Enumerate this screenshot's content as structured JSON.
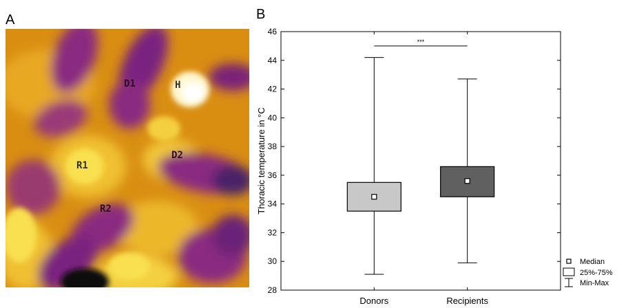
{
  "panels": {
    "a_label": "A",
    "b_label": "B"
  },
  "thermal_image": {
    "labels": [
      {
        "key": "D1",
        "text": "D1"
      },
      {
        "key": "H",
        "text": "H"
      },
      {
        "key": "D2",
        "text": "D2"
      },
      {
        "key": "R1",
        "text": "R1"
      },
      {
        "key": "R2",
        "text": "R2"
      }
    ],
    "colors": {
      "hot": "#ffffff",
      "warm": "#f4d040",
      "mid": "#d89010",
      "cool": "#8a2a80",
      "cold": "#402060"
    }
  },
  "chart_data": {
    "type": "boxplot",
    "title": "",
    "xlabel": "",
    "ylabel": "Thoracic temperature in °C",
    "ylim": [
      28,
      46
    ],
    "yticks": [
      28,
      30,
      32,
      34,
      36,
      38,
      40,
      42,
      44,
      46
    ],
    "categories": [
      "Donors",
      "Recipients"
    ],
    "boxes": [
      {
        "category": "Donors",
        "min": 29.1,
        "q1": 33.5,
        "median": 34.5,
        "q3": 35.5,
        "max": 44.2,
        "color": "#c8c8c8"
      },
      {
        "category": "Recipients",
        "min": 29.9,
        "q1": 34.5,
        "median": 35.6,
        "q3": 36.6,
        "max": 42.7,
        "color": "#606060"
      }
    ],
    "significance": "***",
    "legend": {
      "placement": "bottom-right-outside",
      "entries": [
        "Median",
        "25%-75%",
        "Min-Max"
      ]
    }
  }
}
